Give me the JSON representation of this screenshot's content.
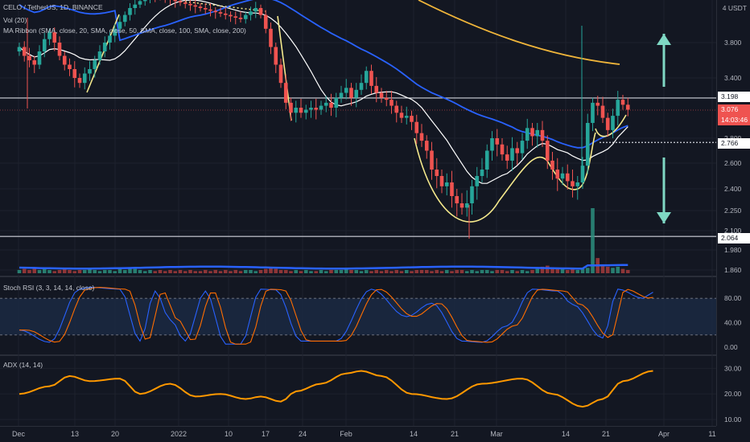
{
  "legend": {
    "symbol": "CELO / TetherUS, 1D, BINANCE",
    "vol": "Vol (20)",
    "ma": "MA Ribbon (SMA, close, 20, SMA, close, 50, SMA, close, 100, SMA, close, 200)",
    "stoch": "Stoch RSI (3, 3, 14, 14, close)",
    "adx": "ADX (14, 14)"
  },
  "currency_label": "4 USDT",
  "price_tags": {
    "resistance": "3.198",
    "last_price": "3.076",
    "countdown": "14:03:46",
    "neckline": "2.766",
    "support": "2.064"
  },
  "colors": {
    "bg": "#131722",
    "up": "#26a69a",
    "down": "#ef5350",
    "sma20": "#ffffff",
    "sma50": "#2962ff",
    "sma200": "#f0b53a",
    "cup_pattern": "#f5e98c",
    "arrow": "#7fd8c4",
    "stoch_k": "#2962ff",
    "stoch_d": "#ff6d00",
    "adx": "#ff9800"
  },
  "chart_data": [
    {
      "type": "candlestick",
      "title": "CELO / TetherUS, 1D, BINANCE",
      "x_ticks": [
        "Dec",
        "13",
        "20",
        "2022",
        "10",
        "17",
        "24",
        "Feb",
        "14",
        "21",
        "Mar",
        "14",
        "21",
        "Apr",
        "11"
      ],
      "y_ticks": [
        1.86,
        1.98,
        2.1,
        2.25,
        2.4,
        2.6,
        2.8,
        3.076,
        3.4,
        3.8
      ],
      "ylim": [
        1.86,
        4.3
      ],
      "close": [
        3.75,
        3.65,
        3.6,
        3.55,
        3.7,
        3.85,
        3.95,
        3.8,
        3.65,
        3.55,
        3.5,
        3.4,
        3.35,
        3.45,
        3.5,
        3.6,
        3.7,
        3.8,
        3.9,
        4.0,
        4.1,
        4.2,
        4.3,
        4.35,
        4.4,
        4.45,
        4.5,
        4.48,
        4.46,
        4.44,
        4.42,
        4.4,
        4.38,
        4.36,
        4.34,
        4.32,
        4.3,
        4.28,
        4.26,
        4.24,
        4.22,
        4.2,
        4.18,
        4.16,
        4.14,
        4.2,
        4.25,
        4.3,
        4.2,
        4.0,
        3.75,
        3.55,
        3.35,
        3.15,
        3.05,
        3.1,
        3.05,
        3.08,
        3.1,
        3.08,
        3.12,
        3.15,
        3.1,
        3.2,
        3.25,
        3.3,
        3.2,
        3.28,
        3.35,
        3.48,
        3.32,
        3.25,
        3.2,
        3.18,
        3.12,
        3.05,
        3.0,
        3.02,
        2.96,
        2.85,
        2.78,
        2.7,
        2.55,
        2.5,
        2.42,
        2.45,
        2.35,
        2.3,
        2.27,
        2.3,
        2.42,
        2.5,
        2.55,
        2.7,
        2.8,
        2.75,
        2.67,
        2.62,
        2.72,
        2.68,
        2.78,
        2.9,
        2.82,
        2.88,
        2.78,
        2.62,
        2.55,
        2.48,
        2.52,
        2.46,
        2.42,
        2.45,
        2.58,
        2.95,
        3.15,
        3.12,
        3.0,
        2.88,
        3.02,
        3.18,
        3.13,
        3.08
      ]
    },
    {
      "type": "bar",
      "title": "Vol (20)",
      "note": "volume histogram, relative heights",
      "values": [
        3,
        4,
        3,
        5,
        3,
        4,
        3,
        2,
        3,
        4,
        3,
        2,
        3,
        3,
        4,
        3,
        2,
        3,
        3,
        2,
        4,
        3,
        5,
        4,
        3,
        2,
        3,
        2,
        3,
        2,
        3,
        2,
        3,
        2,
        3,
        2,
        2,
        3,
        2,
        3,
        2,
        3,
        2,
        3,
        2,
        3,
        3,
        2,
        3,
        4,
        5,
        4,
        3,
        3,
        2,
        3,
        2,
        3,
        2,
        2,
        3,
        2,
        3,
        3,
        3,
        4,
        3,
        3,
        2,
        3,
        2,
        3,
        2,
        3,
        2,
        3,
        2,
        3,
        2,
        3,
        3,
        3,
        2,
        3,
        2,
        3,
        2,
        3,
        3,
        2,
        3,
        2,
        3,
        3,
        2,
        3,
        3,
        2,
        3,
        2,
        3,
        2,
        3,
        4,
        6,
        7,
        5,
        4,
        5,
        3,
        4,
        3,
        4,
        5,
        60,
        14,
        8,
        6,
        5,
        6,
        4,
        3
      ]
    },
    {
      "type": "line",
      "title": "Stoch RSI (3, 3, 14, 14, close)",
      "y_ticks": [
        0,
        40,
        80
      ],
      "ylim": [
        0,
        100
      ],
      "k_control": [
        [
          0,
          28
        ],
        [
          6,
          8
        ],
        [
          12,
          95
        ],
        [
          14,
          98
        ],
        [
          20,
          95
        ],
        [
          24,
          10
        ],
        [
          27,
          92
        ],
        [
          30,
          45
        ],
        [
          33,
          10
        ],
        [
          37,
          92
        ],
        [
          41,
          5
        ],
        [
          44,
          5
        ],
        [
          48,
          95
        ],
        [
          51,
          94
        ],
        [
          56,
          10
        ],
        [
          63,
          10
        ],
        [
          70,
          95
        ],
        [
          77,
          50
        ],
        [
          82,
          72
        ],
        [
          88,
          10
        ],
        [
          92,
          8
        ],
        [
          97,
          35
        ],
        [
          102,
          95
        ],
        [
          107,
          92
        ],
        [
          110,
          70
        ],
        [
          116,
          15
        ],
        [
          119,
          95
        ],
        [
          124,
          80
        ],
        [
          126,
          90
        ]
      ]
    },
    {
      "type": "line",
      "title": "ADX (14, 14)",
      "y_ticks": [
        10,
        20,
        30
      ],
      "ylim": [
        10,
        32
      ],
      "control": [
        [
          0,
          20
        ],
        [
          6,
          23
        ],
        [
          10,
          27
        ],
        [
          14,
          25
        ],
        [
          20,
          26
        ],
        [
          24,
          20
        ],
        [
          30,
          24
        ],
        [
          35,
          19
        ],
        [
          40,
          20
        ],
        [
          45,
          18
        ],
        [
          48,
          19
        ],
        [
          52,
          17
        ],
        [
          55,
          21
        ],
        [
          60,
          24
        ],
        [
          65,
          28
        ],
        [
          68,
          29
        ],
        [
          72,
          27
        ],
        [
          78,
          20
        ],
        [
          85,
          18
        ],
        [
          92,
          24
        ],
        [
          100,
          26
        ],
        [
          106,
          20
        ],
        [
          112,
          15
        ],
        [
          116,
          18
        ],
        [
          120,
          25
        ],
        [
          126,
          29
        ]
      ]
    }
  ]
}
